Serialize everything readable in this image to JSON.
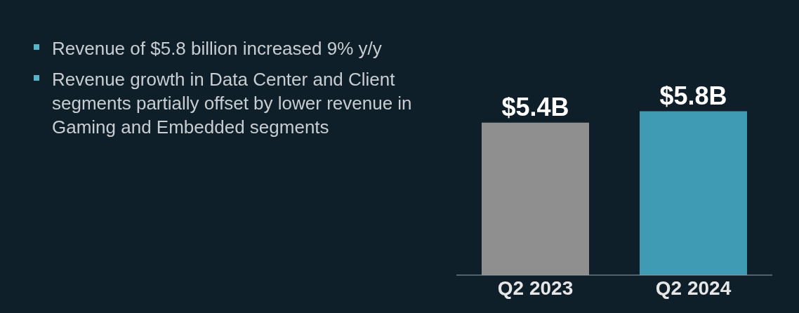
{
  "chart_data": {
    "type": "bar",
    "categories": [
      "Q2 2023",
      "Q2 2024"
    ],
    "values": [
      5.4,
      5.8
    ],
    "colors": [
      "#8f8f8f",
      "#3f9bb4"
    ],
    "value_labels": [
      "$5.4B",
      "$5.8B"
    ],
    "annotations": [
      "Revenue of $5.8 billion increased 9% y/y",
      "Revenue growth in Data Center and Client segments partially offset by lower revenue in Gaming and Embedded segments"
    ]
  }
}
